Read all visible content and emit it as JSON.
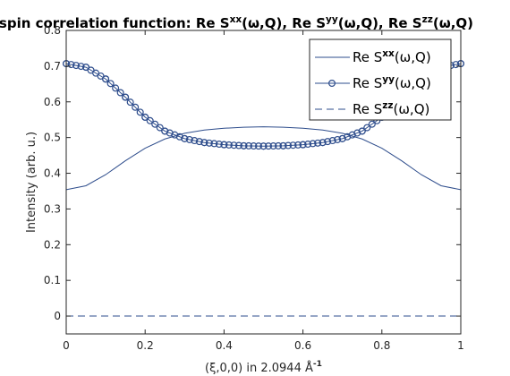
{
  "figure": {
    "title_parts": [
      {
        "t": "n-spin correlation function: Re S"
      },
      {
        "t": "xx",
        "sup": true
      },
      {
        "t": "(ω,Q), Re S"
      },
      {
        "t": "yy",
        "sup": true
      },
      {
        "t": "(ω,Q), Re S"
      },
      {
        "t": "zz",
        "sup": true
      },
      {
        "t": "(ω,Q)"
      }
    ],
    "xlabel_parts": [
      {
        "t": "(ξ,0,0) in 2.0944 Å"
      },
      {
        "t": "-1",
        "sup": true
      }
    ],
    "ylabel": "Intensity (arb. u.)",
    "colors": {
      "axes": "#262626",
      "series": "#2e4d8c",
      "legend_border": "#262626"
    }
  },
  "chart_data": {
    "type": "line",
    "xlim": [
      0,
      1
    ],
    "ylim": [
      -0.05,
      0.8
    ],
    "xticks": [
      0,
      0.2,
      0.4,
      0.6,
      0.8,
      1
    ],
    "yticks": [
      0,
      0.1,
      0.2,
      0.3,
      0.4,
      0.5,
      0.6,
      0.7,
      0.8
    ],
    "xtick_labels": [
      "0",
      "0.2",
      "0.4",
      "0.6",
      "0.8",
      "1"
    ],
    "ytick_labels": [
      "0",
      "0.1",
      "0.2",
      "0.3",
      "0.4",
      "0.5",
      "0.6",
      "0.7",
      "0.8"
    ],
    "grid": false,
    "legend_position": "top-right",
    "x": [
      0,
      0.05,
      0.1,
      0.15,
      0.2,
      0.25,
      0.3,
      0.35,
      0.4,
      0.45,
      0.5,
      0.55,
      0.6,
      0.65,
      0.7,
      0.75,
      0.8,
      0.85,
      0.9,
      0.95,
      1
    ],
    "series": [
      {
        "name_parts": [
          {
            "t": "Re S"
          },
          {
            "t": "xx",
            "sup": true
          },
          {
            "t": "(ω,Q)"
          }
        ],
        "style": "solid",
        "values": [
          0.354,
          0.365,
          0.396,
          0.435,
          0.47,
          0.496,
          0.512,
          0.521,
          0.526,
          0.529,
          0.53,
          0.529,
          0.526,
          0.521,
          0.512,
          0.496,
          0.47,
          0.435,
          0.396,
          0.365,
          0.354
        ]
      },
      {
        "name_parts": [
          {
            "t": "Re S"
          },
          {
            "t": "yy",
            "sup": true
          },
          {
            "t": "(ω,Q)"
          }
        ],
        "style": "markers",
        "values": [
          0.707,
          0.697,
          0.664,
          0.613,
          0.557,
          0.518,
          0.497,
          0.486,
          0.48,
          0.477,
          0.476,
          0.477,
          0.48,
          0.486,
          0.497,
          0.518,
          0.557,
          0.613,
          0.664,
          0.697,
          0.707
        ]
      },
      {
        "name_parts": [
          {
            "t": "Re S"
          },
          {
            "t": "zz",
            "sup": true
          },
          {
            "t": "(ω,Q)"
          }
        ],
        "style": "dashed",
        "values": [
          0,
          0,
          0,
          0,
          0,
          0,
          0,
          0,
          0,
          0,
          0,
          0,
          0,
          0,
          0,
          0,
          0,
          0,
          0,
          0,
          0
        ]
      }
    ]
  }
}
